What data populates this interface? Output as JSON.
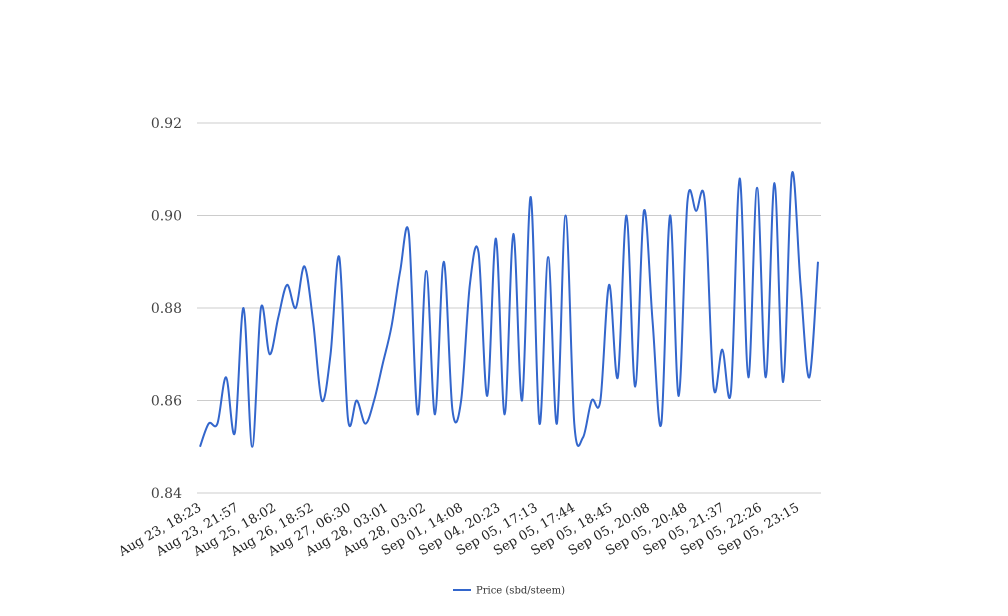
{
  "chart_data": {
    "type": "line",
    "title": "",
    "xlabel": "",
    "ylabel": "",
    "ylim": [
      0.84,
      0.92
    ],
    "yticks": [
      "0.84",
      "0.86",
      "0.88",
      "0.90",
      "0.92"
    ],
    "grid": true,
    "legend_position": "bottom",
    "x_tick_labels": [
      "Aug 23, 18:23",
      "Aug 23, 21:57",
      "Aug 25, 18:02",
      "Aug 26, 18:52",
      "Aug 27, 06:30",
      "Aug 28, 03:01",
      "Aug 28, 03:02",
      "Sep 01, 14:08",
      "Sep 04, 20:23",
      "Sep 05, 17:13",
      "Sep 05, 17:44",
      "Sep 05, 18:45",
      "Sep 05, 20:08",
      "Sep 05, 20:48",
      "Sep 05, 21:37",
      "Sep 05, 22:26",
      "Sep 05, 23:15"
    ],
    "series": [
      {
        "name": "Price (sbd/steem)",
        "color": "#3366cc",
        "values": [
          0.85,
          0.855,
          0.855,
          0.865,
          0.853,
          0.88,
          0.85,
          0.88,
          0.87,
          0.878,
          0.885,
          0.88,
          0.889,
          0.877,
          0.86,
          0.87,
          0.891,
          0.856,
          0.86,
          0.855,
          0.86,
          0.868,
          0.876,
          0.888,
          0.896,
          0.857,
          0.888,
          0.857,
          0.89,
          0.858,
          0.86,
          0.885,
          0.892,
          0.861,
          0.895,
          0.857,
          0.896,
          0.86,
          0.904,
          0.855,
          0.891,
          0.855,
          0.9,
          0.855,
          0.852,
          0.86,
          0.86,
          0.885,
          0.865,
          0.9,
          0.863,
          0.901,
          0.877,
          0.855,
          0.9,
          0.861,
          0.903,
          0.901,
          0.903,
          0.863,
          0.871,
          0.862,
          0.908,
          0.865,
          0.906,
          0.865,
          0.907,
          0.864,
          0.909,
          0.885,
          0.865,
          0.89
        ]
      }
    ]
  }
}
